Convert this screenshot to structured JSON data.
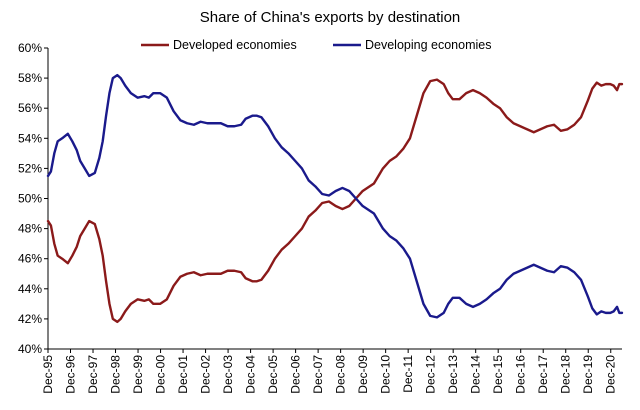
{
  "chart_data": {
    "type": "line",
    "title": "Share of China's exports by destination",
    "xlabel": "",
    "ylabel": "",
    "ylim": [
      40,
      60
    ],
    "xlim": [
      1995.92,
      2021.42
    ],
    "grid": false,
    "legend_position": "top",
    "y_ticks": [
      "40%",
      "42%",
      "44%",
      "46%",
      "48%",
      "50%",
      "52%",
      "54%",
      "56%",
      "58%",
      "60%"
    ],
    "x_ticks": [
      "Dec-95",
      "Dec-96",
      "Dec-97",
      "Dec-98",
      "Dec-99",
      "Dec-00",
      "Dec-01",
      "Dec-02",
      "Dec-03",
      "Dec-04",
      "Dec-05",
      "Dec-06",
      "Dec-07",
      "Dec-08",
      "Dec-09",
      "Dec-10",
      "Dec-11",
      "Dec-12",
      "Dec-13",
      "Dec-14",
      "Dec-15",
      "Dec-16",
      "Dec-17",
      "Dec-18",
      "Dec-19",
      "Dec-20"
    ],
    "series": [
      {
        "name": "Developed economies",
        "color": "#8B1A1A",
        "points": [
          [
            1995.92,
            48.5
          ],
          [
            1996.05,
            48.2
          ],
          [
            1996.2,
            47.0
          ],
          [
            1996.35,
            46.2
          ],
          [
            1996.55,
            46.0
          ],
          [
            1996.8,
            45.7
          ],
          [
            1997.0,
            46.2
          ],
          [
            1997.2,
            46.8
          ],
          [
            1997.35,
            47.5
          ],
          [
            1997.55,
            48.0
          ],
          [
            1997.75,
            48.5
          ],
          [
            1998.0,
            48.3
          ],
          [
            1998.2,
            47.3
          ],
          [
            1998.35,
            46.2
          ],
          [
            1998.5,
            44.5
          ],
          [
            1998.65,
            43.0
          ],
          [
            1998.8,
            42.0
          ],
          [
            1999.0,
            41.8
          ],
          [
            1999.15,
            42.0
          ],
          [
            1999.35,
            42.5
          ],
          [
            1999.6,
            43.0
          ],
          [
            1999.9,
            43.3
          ],
          [
            2000.2,
            43.2
          ],
          [
            2000.4,
            43.3
          ],
          [
            2000.6,
            43.0
          ],
          [
            2000.9,
            43.0
          ],
          [
            2001.2,
            43.3
          ],
          [
            2001.5,
            44.2
          ],
          [
            2001.8,
            44.8
          ],
          [
            2002.1,
            45.0
          ],
          [
            2002.4,
            45.1
          ],
          [
            2002.7,
            44.9
          ],
          [
            2003.0,
            45.0
          ],
          [
            2003.3,
            45.0
          ],
          [
            2003.6,
            45.0
          ],
          [
            2003.9,
            45.2
          ],
          [
            2004.2,
            45.2
          ],
          [
            2004.5,
            45.1
          ],
          [
            2004.7,
            44.7
          ],
          [
            2005.0,
            44.5
          ],
          [
            2005.2,
            44.5
          ],
          [
            2005.4,
            44.6
          ],
          [
            2005.7,
            45.2
          ],
          [
            2006.0,
            46.0
          ],
          [
            2006.3,
            46.6
          ],
          [
            2006.6,
            47.0
          ],
          [
            2006.9,
            47.5
          ],
          [
            2007.2,
            48.0
          ],
          [
            2007.5,
            48.8
          ],
          [
            2007.8,
            49.2
          ],
          [
            2008.1,
            49.7
          ],
          [
            2008.4,
            49.8
          ],
          [
            2008.7,
            49.5
          ],
          [
            2009.0,
            49.3
          ],
          [
            2009.3,
            49.5
          ],
          [
            2009.6,
            50.0
          ],
          [
            2009.9,
            50.5
          ],
          [
            2010.1,
            50.7
          ],
          [
            2010.4,
            51.0
          ],
          [
            2010.8,
            52.0
          ],
          [
            2011.1,
            52.5
          ],
          [
            2011.4,
            52.8
          ],
          [
            2011.7,
            53.3
          ],
          [
            2012.0,
            54.0
          ],
          [
            2012.3,
            55.5
          ],
          [
            2012.6,
            57.0
          ],
          [
            2012.9,
            57.8
          ],
          [
            2013.2,
            57.9
          ],
          [
            2013.5,
            57.6
          ],
          [
            2013.7,
            57.0
          ],
          [
            2013.9,
            56.6
          ],
          [
            2014.2,
            56.6
          ],
          [
            2014.5,
            57.0
          ],
          [
            2014.8,
            57.2
          ],
          [
            2015.1,
            57.0
          ],
          [
            2015.4,
            56.7
          ],
          [
            2015.7,
            56.3
          ],
          [
            2016.0,
            56.0
          ],
          [
            2016.3,
            55.4
          ],
          [
            2016.6,
            55.0
          ],
          [
            2016.9,
            54.8
          ],
          [
            2017.2,
            54.6
          ],
          [
            2017.5,
            54.4
          ],
          [
            2017.8,
            54.6
          ],
          [
            2018.1,
            54.8
          ],
          [
            2018.4,
            54.9
          ],
          [
            2018.7,
            54.5
          ],
          [
            2019.0,
            54.6
          ],
          [
            2019.3,
            54.9
          ],
          [
            2019.6,
            55.4
          ],
          [
            2019.9,
            56.5
          ],
          [
            2020.1,
            57.3
          ],
          [
            2020.3,
            57.7
          ],
          [
            2020.5,
            57.5
          ],
          [
            2020.7,
            57.6
          ],
          [
            2020.9,
            57.6
          ],
          [
            2021.05,
            57.5
          ],
          [
            2021.2,
            57.2
          ],
          [
            2021.3,
            57.6
          ],
          [
            2021.42,
            57.6
          ]
        ]
      },
      {
        "name": "Developing economies",
        "color": "#1A1A8C",
        "points": [
          [
            1995.92,
            51.5
          ],
          [
            1996.05,
            51.8
          ],
          [
            1996.2,
            53.0
          ],
          [
            1996.35,
            53.8
          ],
          [
            1996.55,
            54.0
          ],
          [
            1996.8,
            54.3
          ],
          [
            1997.0,
            53.8
          ],
          [
            1997.2,
            53.2
          ],
          [
            1997.35,
            52.5
          ],
          [
            1997.55,
            52.0
          ],
          [
            1997.75,
            51.5
          ],
          [
            1998.0,
            51.7
          ],
          [
            1998.2,
            52.7
          ],
          [
            1998.35,
            53.8
          ],
          [
            1998.5,
            55.5
          ],
          [
            1998.65,
            57.0
          ],
          [
            1998.8,
            58.0
          ],
          [
            1999.0,
            58.2
          ],
          [
            1999.15,
            58.0
          ],
          [
            1999.35,
            57.5
          ],
          [
            1999.6,
            57.0
          ],
          [
            1999.9,
            56.7
          ],
          [
            2000.2,
            56.8
          ],
          [
            2000.4,
            56.7
          ],
          [
            2000.6,
            57.0
          ],
          [
            2000.9,
            57.0
          ],
          [
            2001.2,
            56.7
          ],
          [
            2001.5,
            55.8
          ],
          [
            2001.8,
            55.2
          ],
          [
            2002.1,
            55.0
          ],
          [
            2002.4,
            54.9
          ],
          [
            2002.7,
            55.1
          ],
          [
            2003.0,
            55.0
          ],
          [
            2003.3,
            55.0
          ],
          [
            2003.6,
            55.0
          ],
          [
            2003.9,
            54.8
          ],
          [
            2004.2,
            54.8
          ],
          [
            2004.5,
            54.9
          ],
          [
            2004.7,
            55.3
          ],
          [
            2005.0,
            55.5
          ],
          [
            2005.2,
            55.5
          ],
          [
            2005.4,
            55.4
          ],
          [
            2005.7,
            54.8
          ],
          [
            2006.0,
            54.0
          ],
          [
            2006.3,
            53.4
          ],
          [
            2006.6,
            53.0
          ],
          [
            2006.9,
            52.5
          ],
          [
            2007.2,
            52.0
          ],
          [
            2007.5,
            51.2
          ],
          [
            2007.8,
            50.8
          ],
          [
            2008.1,
            50.3
          ],
          [
            2008.4,
            50.2
          ],
          [
            2008.7,
            50.5
          ],
          [
            2009.0,
            50.7
          ],
          [
            2009.3,
            50.5
          ],
          [
            2009.6,
            50.0
          ],
          [
            2009.9,
            49.5
          ],
          [
            2010.1,
            49.3
          ],
          [
            2010.4,
            49.0
          ],
          [
            2010.8,
            48.0
          ],
          [
            2011.1,
            47.5
          ],
          [
            2011.4,
            47.2
          ],
          [
            2011.7,
            46.7
          ],
          [
            2012.0,
            46.0
          ],
          [
            2012.3,
            44.5
          ],
          [
            2012.6,
            43.0
          ],
          [
            2012.9,
            42.2
          ],
          [
            2013.2,
            42.1
          ],
          [
            2013.5,
            42.4
          ],
          [
            2013.7,
            43.0
          ],
          [
            2013.9,
            43.4
          ],
          [
            2014.2,
            43.4
          ],
          [
            2014.5,
            43.0
          ],
          [
            2014.8,
            42.8
          ],
          [
            2015.1,
            43.0
          ],
          [
            2015.4,
            43.3
          ],
          [
            2015.7,
            43.7
          ],
          [
            2016.0,
            44.0
          ],
          [
            2016.3,
            44.6
          ],
          [
            2016.6,
            45.0
          ],
          [
            2016.9,
            45.2
          ],
          [
            2017.2,
            45.4
          ],
          [
            2017.5,
            45.6
          ],
          [
            2017.8,
            45.4
          ],
          [
            2018.1,
            45.2
          ],
          [
            2018.4,
            45.1
          ],
          [
            2018.7,
            45.5
          ],
          [
            2019.0,
            45.4
          ],
          [
            2019.3,
            45.1
          ],
          [
            2019.6,
            44.6
          ],
          [
            2019.9,
            43.5
          ],
          [
            2020.1,
            42.7
          ],
          [
            2020.3,
            42.3
          ],
          [
            2020.5,
            42.5
          ],
          [
            2020.7,
            42.4
          ],
          [
            2020.9,
            42.4
          ],
          [
            2021.05,
            42.5
          ],
          [
            2021.2,
            42.8
          ],
          [
            2021.3,
            42.4
          ],
          [
            2021.42,
            42.4
          ]
        ]
      }
    ]
  }
}
